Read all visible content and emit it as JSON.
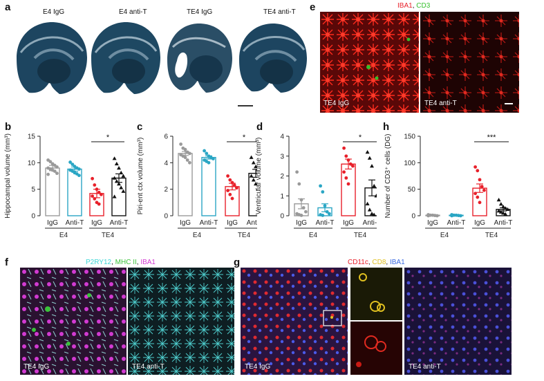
{
  "panels": {
    "a": {
      "label": "a",
      "titles": [
        "E4 IgG",
        "E4 anti-T",
        "TE4 IgG",
        "TE4 anti-T"
      ]
    },
    "e": {
      "label": "e",
      "stain1": "IBA1",
      "sep": ", ",
      "stain2": "CD3",
      "left_tag": "TE4 IgG",
      "right_tag": "TE4 anti-T",
      "colors": {
        "stain1": "#e8202a",
        "stain2": "#35c02c"
      }
    },
    "f": {
      "label": "f",
      "stain1": "P2RY12",
      "sep1": ", ",
      "stain2": "MHC II",
      "sep2": ", ",
      "stain3": "IBA1",
      "left_tag": "TE4 IgG",
      "right_tag": "TE4 anti-T",
      "colors": {
        "stain1": "#3fd6d6",
        "stain2": "#3ac23a",
        "stain3": "#d23ad2"
      }
    },
    "g": {
      "label": "g",
      "stain1": "CD11c",
      "sep1": ", ",
      "stain2": "CD8",
      "sep2": ", ",
      "stain3": "IBA1",
      "left_tag": "TE4 IgG",
      "right_tag": "TE4 anti-T",
      "colors": {
        "stain1": "#e8202a",
        "stain2": "#e0c020",
        "stain3": "#3a6ae0"
      }
    }
  },
  "chart_data": [
    {
      "panel": "b",
      "type": "bar",
      "ylabel": "Hippocampal volume (mm³)",
      "ylim": [
        0,
        15
      ],
      "yticks": [
        "0",
        "5",
        "10",
        "15"
      ],
      "ytick_values": [
        0,
        5,
        10,
        15
      ],
      "categories": [
        "IgG",
        "Anti-T",
        "IgG",
        "Anti-T"
      ],
      "groups": [
        "E4",
        "TE4"
      ],
      "means": [
        9.0,
        8.8,
        4.2,
        7.1
      ],
      "sem": [
        0.5,
        0.4,
        0.8,
        0.8
      ],
      "colors": [
        "#9a9a9a",
        "#2aa6c4",
        "#e8202a",
        "#111111"
      ],
      "markers": [
        "circle",
        "circle",
        "circle",
        "triangle"
      ],
      "points": [
        [
          10.5,
          10.2,
          9.8,
          9.5,
          9.2,
          9.0,
          8.8,
          8.6,
          8.4,
          8.0,
          7.8
        ],
        [
          10.1,
          9.7,
          9.3,
          9.0,
          8.8,
          8.6,
          8.4,
          8.1,
          7.9,
          7.6
        ],
        [
          7.0,
          5.8,
          5.0,
          4.4,
          4.0,
          3.7,
          3.2,
          2.5,
          2.2
        ],
        [
          10.8,
          9.8,
          9.0,
          8.1,
          7.5,
          7.1,
          6.5,
          6.0,
          5.3,
          4.6,
          3.6
        ]
      ],
      "sig": {
        "between": [
          2,
          3
        ],
        "label": "*"
      }
    },
    {
      "panel": "c",
      "type": "bar",
      "ylabel": "Piri-ent ctx volume (mm³)",
      "ylim": [
        0,
        6
      ],
      "yticks": [
        "0",
        "2",
        "4",
        "6"
      ],
      "ytick_values": [
        0,
        2,
        4,
        6
      ],
      "categories": [
        "IgG",
        "Anti-T",
        "IgG",
        "Anti-T"
      ],
      "groups": [
        "E4",
        "TE4"
      ],
      "means": [
        4.7,
        4.4,
        2.2,
        3.2
      ],
      "sem": [
        0.15,
        0.12,
        0.25,
        0.3
      ],
      "colors": [
        "#9a9a9a",
        "#2aa6c4",
        "#e8202a",
        "#111111"
      ],
      "markers": [
        "circle",
        "circle",
        "circle",
        "triangle"
      ],
      "points": [
        [
          5.4,
          5.1,
          5.0,
          4.8,
          4.7,
          4.6,
          4.5,
          4.4,
          4.2,
          4.0
        ],
        [
          4.9,
          4.7,
          4.5,
          4.4,
          4.3,
          4.2,
          4.1,
          4.0
        ],
        [
          3.0,
          2.7,
          2.5,
          2.3,
          2.1,
          1.9,
          1.6,
          1.3
        ],
        [
          4.4,
          4.0,
          3.7,
          3.5,
          3.2,
          3.0,
          2.7,
          2.4,
          2.0,
          1.5
        ]
      ],
      "sig": {
        "between": [
          2,
          3
        ],
        "label": "*"
      }
    },
    {
      "panel": "d",
      "type": "bar",
      "ylabel": "Ventricular volume (mm³)",
      "ylim": [
        0,
        4
      ],
      "yticks": [
        "0",
        "1",
        "2",
        "3",
        "4"
      ],
      "ytick_values": [
        0,
        1,
        2,
        3,
        4
      ],
      "categories": [
        "IgG",
        "Anti-T",
        "IgG",
        "Anti-T"
      ],
      "groups": [
        "E4",
        "TE4"
      ],
      "means": [
        0.6,
        0.4,
        2.6,
        1.4
      ],
      "sem": [
        0.25,
        0.2,
        0.25,
        0.4
      ],
      "colors": [
        "#9a9a9a",
        "#2aa6c4",
        "#e8202a",
        "#111111"
      ],
      "markers": [
        "circle",
        "circle",
        "circle",
        "triangle"
      ],
      "points": [
        [
          2.2,
          1.6,
          0.8,
          0.4,
          0.2,
          0.1,
          0.05,
          0.02
        ],
        [
          1.5,
          1.2,
          0.5,
          0.2,
          0.1,
          0.05,
          0.02
        ],
        [
          3.4,
          3.0,
          2.8,
          2.6,
          2.5,
          2.2,
          1.9,
          1.6
        ],
        [
          3.2,
          2.9,
          2.5,
          1.5,
          1.0,
          0.6,
          0.3,
          0.1,
          0.05
        ]
      ],
      "sig": {
        "between": [
          2,
          3
        ],
        "label": "*"
      }
    },
    {
      "panel": "h",
      "type": "bar",
      "ylabel": "Number of CD3⁺ cells (DG)",
      "ylim": [
        0,
        150
      ],
      "yticks": [
        "0",
        "50",
        "100",
        "150"
      ],
      "ytick_values": [
        0,
        50,
        100,
        150
      ],
      "categories": [
        "IgG",
        "Anti-T",
        "IgG",
        "Anti-T"
      ],
      "groups": [
        "E4",
        "TE4"
      ],
      "means": [
        1,
        1,
        52,
        12
      ],
      "sem": [
        0.5,
        0.5,
        8,
        3
      ],
      "colors": [
        "#9a9a9a",
        "#2aa6c4",
        "#e8202a",
        "#111111"
      ],
      "markers": [
        "circle",
        "circle",
        "circle",
        "triangle"
      ],
      "points": [
        [
          2,
          1,
          1,
          0.5,
          0,
          0
        ],
        [
          2,
          1,
          1,
          0.5,
          0,
          0
        ],
        [
          92,
          85,
          68,
          55,
          48,
          42,
          35,
          25
        ],
        [
          30,
          22,
          17,
          14,
          12,
          9,
          7,
          5,
          3
        ]
      ],
      "sig": {
        "between": [
          2,
          3
        ],
        "label": "***"
      }
    }
  ]
}
